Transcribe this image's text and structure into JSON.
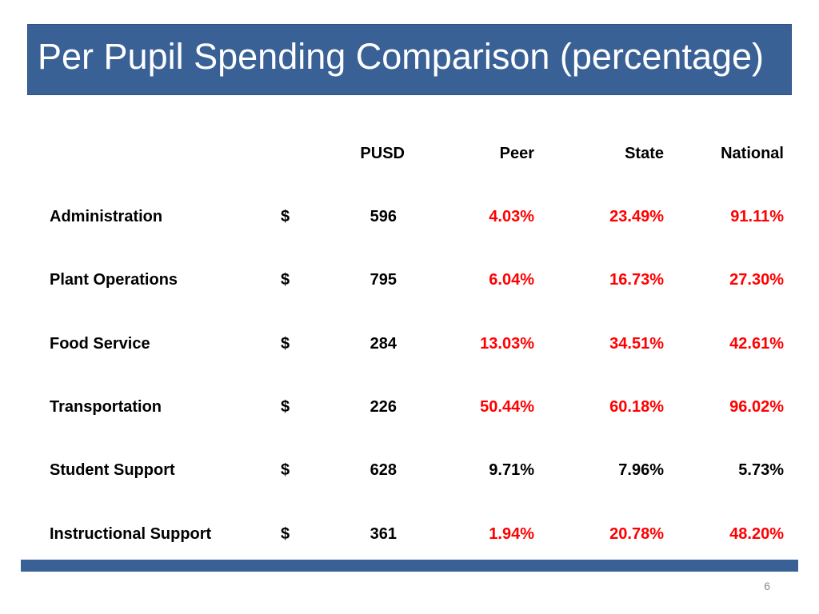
{
  "slide": {
    "title": "Per Pupil Spending Comparison (percentage)",
    "page_number": "6"
  },
  "colors": {
    "title_bar": "#3a6196",
    "highlight": "#ff0000",
    "normal": "#000000"
  },
  "table": {
    "headers": {
      "pusd": "PUSD",
      "peer": "Peer",
      "state": "State",
      "national": "National"
    },
    "rows": [
      {
        "category": "Administration",
        "currency": "$",
        "pusd": "596",
        "peer": "4.03%",
        "state": "23.49%",
        "national": "91.11%",
        "highlight": [
          true,
          true,
          true
        ]
      },
      {
        "category": "Plant Operations",
        "currency": "$",
        "pusd": "795",
        "peer": "6.04%",
        "state": "16.73%",
        "national": "27.30%",
        "highlight": [
          true,
          true,
          true
        ]
      },
      {
        "category": "Food Service",
        "currency": "$",
        "pusd": "284",
        "peer": "13.03%",
        "state": "34.51%",
        "national": "42.61%",
        "highlight": [
          true,
          true,
          true
        ]
      },
      {
        "category": "Transportation",
        "currency": "$",
        "pusd": "226",
        "peer": "50.44%",
        "state": "60.18%",
        "national": "96.02%",
        "highlight": [
          true,
          true,
          true
        ]
      },
      {
        "category": "Student Support",
        "currency": "$",
        "pusd": "628",
        "peer": "9.71%",
        "state": "7.96%",
        "national": "5.73%",
        "highlight": [
          false,
          false,
          false
        ]
      },
      {
        "category": "Instructional Support",
        "currency": "$",
        "pusd": "361",
        "peer": "1.94%",
        "state": "20.78%",
        "national": "48.20%",
        "highlight": [
          true,
          true,
          true
        ]
      }
    ]
  }
}
